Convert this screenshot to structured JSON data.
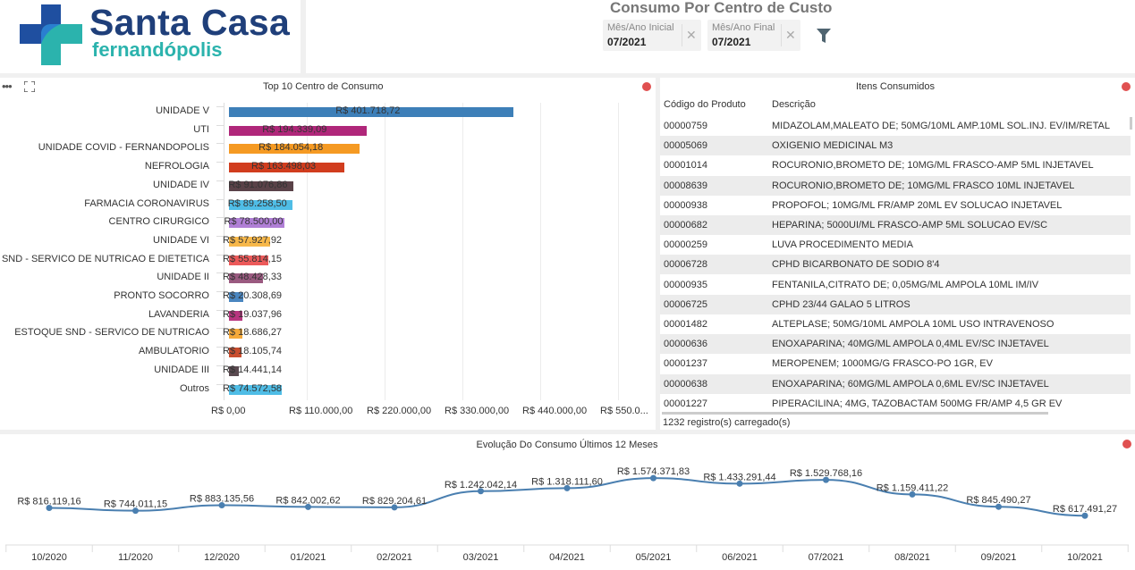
{
  "header": {
    "logo_title": "Santa Casa",
    "logo_subtitle": "fernandópolis",
    "page_title": "Consumo Por Centro de Custo",
    "filters": [
      {
        "label": "Mês/Ano Inicial",
        "value": "07/2021",
        "clear_icon": "close-icon"
      },
      {
        "label": "Mês/Ano Final",
        "value": "07/2021",
        "clear_icon": "close-icon"
      }
    ],
    "filter_button_icon": "funnel-icon"
  },
  "colors": {
    "brand_navy": "#1f3f7a",
    "brand_teal": "#2bb3ad",
    "status_dot": "#e05050",
    "line_series": "#4a7fb0"
  },
  "bar_panel": {
    "title": "Top 10 Centro de Consumo",
    "menu_icon": "more-dots-icon",
    "expand_icon": "expand-icon"
  },
  "chart_data": [
    {
      "type": "bar",
      "orientation": "horizontal",
      "title": "Top 10 Centro de Consumo",
      "categories": [
        "UNIDADE V",
        "UTI",
        "UNIDADE COVID - FERNANDOPOLIS",
        "NEFROLOGIA",
        "UNIDADE IV",
        "FARMACIA CORONAVIRUS",
        "CENTRO CIRURGICO",
        "UNIDADE VI",
        "SND - SERVICO DE NUTRICAO E DIETETICA",
        "UNIDADE II",
        "PRONTO SOCORRO",
        "LAVANDERIA",
        "ESTOQUE SND - SERVICO DE NUTRICAO",
        "AMBULATORIO",
        "UNIDADE III",
        "Outros"
      ],
      "values": [
        401718.72,
        194339.09,
        184054.18,
        163498.03,
        91076.86,
        89258.5,
        78500.0,
        57927.92,
        55814.15,
        48428.33,
        20308.69,
        19037.96,
        18686.27,
        18105.74,
        14441.14,
        74572.58
      ],
      "value_labels": [
        "R$ 401.718,72",
        "R$ 194.339,09",
        "R$ 184.054,18",
        "R$ 163.498,03",
        "R$ 91.076,86",
        "R$ 89.258,50",
        "R$ 78.500,00",
        "R$ 57.927,92",
        "R$ 55.814,15",
        "R$ 48.428,33",
        "R$ 20.308,69",
        "R$ 19.037,96",
        "R$ 18.686,27",
        "R$ 18.105,74",
        "R$ 14.441,14",
        "R$ 74.572,58"
      ],
      "bar_colors": [
        "#3d7fb8",
        "#b0277a",
        "#f59a23",
        "#d13d1e",
        "#5a4248",
        "#4fbde6",
        "#b07fd6",
        "#f7b84a",
        "#ec5a5a",
        "#9a5a80",
        "#4a86c0",
        "#b8357f",
        "#f5a93a",
        "#c94e2f",
        "#5a4a50",
        "#4fbde6"
      ],
      "xlim": [
        0,
        550000
      ],
      "x_ticks": [
        "R$ 0,00",
        "R$ 110.000,00",
        "R$ 220.000,00",
        "R$ 330.000,00",
        "R$ 440.000,00",
        "R$ 550.0..."
      ],
      "grid": true,
      "legend": "none"
    },
    {
      "type": "line",
      "title": "Evolução Do Consumo Últimos 12 Meses",
      "categories": [
        "10/2020",
        "11/2020",
        "12/2020",
        "01/2021",
        "02/2021",
        "03/2021",
        "04/2021",
        "05/2021",
        "06/2021",
        "07/2021",
        "08/2021",
        "09/2021",
        "10/2021"
      ],
      "series": [
        {
          "name": "Consumo",
          "values": [
            816119.16,
            744011.15,
            883135.56,
            842002.62,
            829204.61,
            1242042.14,
            1318111.6,
            1574371.83,
            1433291.44,
            1529768.16,
            1159411.22,
            845490.27,
            617491.27
          ],
          "labels": [
            "R$ 816.119,16",
            "R$ 744.011,15",
            "R$ 883.135,56",
            "R$ 842.002,62",
            "R$ 829.204,61",
            "R$ 1.242.042,14",
            "R$ 1.318.111,60",
            "R$ 1.574.371,83",
            "R$ 1.433.291,44",
            "R$ 1.529.768,16",
            "R$ 1.159.411,22",
            "R$ 845.490,27",
            "R$ 617.491,27"
          ]
        }
      ],
      "grid": false,
      "legend": "none"
    }
  ],
  "table_panel": {
    "title": "Itens Consumidos",
    "columns": [
      "Código do Produto",
      "Descrição"
    ],
    "rows": [
      [
        "00000759",
        "MIDAZOLAM,MALEATO DE; 50MG/10ML AMP.10ML SOL.INJ. EV/IM/RETAL"
      ],
      [
        "00005069",
        "OXIGENIO MEDICINAL M3"
      ],
      [
        "00001014",
        "ROCURONIO,BROMETO DE; 10MG/ML FRASCO-AMP 5ML INJETAVEL"
      ],
      [
        "00008639",
        "ROCURONIO,BROMETO DE; 10MG/ML FRASCO 10ML INJETAVEL"
      ],
      [
        "00000938",
        "PROPOFOL; 10MG/ML FR/AMP 20ML EV SOLUCAO INJETAVEL"
      ],
      [
        "00000682",
        "HEPARINA; 5000UI/ML FRASCO-AMP 5ML SOLUCAO EV/SC"
      ],
      [
        "00000259",
        "LUVA PROCEDIMENTO MEDIA"
      ],
      [
        "00006728",
        "CPHD BICARBONATO DE SODIO 8'4"
      ],
      [
        "00000935",
        "FENTANILA,CITRATO DE; 0,05MG/ML AMPOLA 10ML IM/IV"
      ],
      [
        "00006725",
        "CPHD 23/44 GALAO 5 LITROS"
      ],
      [
        "00001482",
        "ALTEPLASE; 50MG/10ML AMPOLA 10ML USO INTRAVENOSO"
      ],
      [
        "00000636",
        "ENOXAPARINA; 40MG/ML AMPOLA 0,4ML EV/SC INJETAVEL"
      ],
      [
        "00001237",
        "MEROPENEM; 1000MG/G FRASCO-PO 1GR, EV"
      ],
      [
        "00000638",
        "ENOXAPARINA; 60MG/ML AMPOLA 0,6ML EV/SC INJETAVEL"
      ],
      [
        "00001227",
        "PIPERACILINA; 4MG, TAZOBACTAM 500MG FR/AMP 4,5 GR EV"
      ]
    ],
    "footer": "1232 registro(s) carregado(s)"
  },
  "line_panel": {
    "title": "Evolução Do Consumo Últimos 12 Meses"
  }
}
